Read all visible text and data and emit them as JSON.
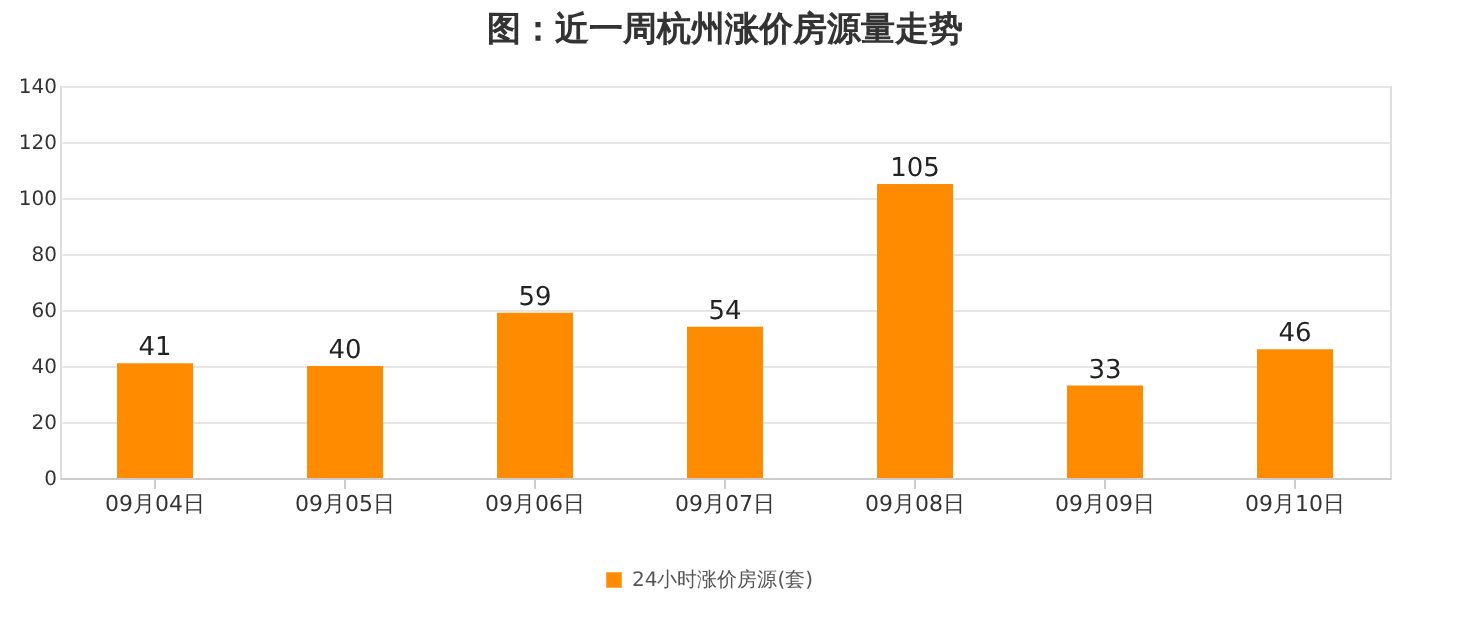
{
  "chart_data": {
    "type": "bar",
    "title": "图：近一周杭州涨价房源量走势",
    "categories": [
      "09月04日",
      "09月05日",
      "09月06日",
      "09月07日",
      "09月08日",
      "09月09日",
      "09月10日"
    ],
    "series": [
      {
        "name": "24小时涨价房源(套)",
        "color": "#ff8c00",
        "values": [
          41,
          40,
          59,
          54,
          105,
          33,
          46
        ]
      }
    ],
    "ylim": [
      0,
      140
    ],
    "yticks": [
      0,
      20,
      40,
      60,
      80,
      100,
      120,
      140
    ],
    "grid": "y",
    "legend": "bottom",
    "data_labels": true
  }
}
